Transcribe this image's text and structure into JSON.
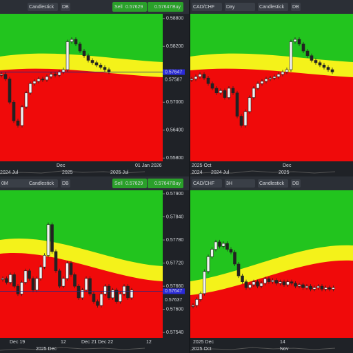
{
  "panels": [
    {
      "toolbar": {
        "chart_type": "Candlestick",
        "db": "DB",
        "sell_label": "Sell",
        "sell_price": "0.57629",
        "buy_price": "0.57647",
        "buy_label": "Buy"
      },
      "ylim": [
        0.5573,
        0.589
      ],
      "price_ticks": [
        {
          "value": 0.588,
          "label": "0.58800"
        },
        {
          "value": 0.582,
          "label": "0.58200"
        },
        {
          "value": 0.57,
          "label": "0.57000"
        },
        {
          "value": 0.564,
          "label": "0.56400"
        },
        {
          "value": 0.558,
          "label": "0.55800"
        }
      ],
      "price_tags": [
        {
          "value": 0.57647,
          "label": "0.57647"
        },
        {
          "value": 0.57587,
          "label": "0.57587"
        }
      ],
      "date_labels": [
        "Dec",
        "01 Jan 2026"
      ],
      "nav_labels": [
        "2024 Jul",
        "2025",
        "2025 Jul"
      ],
      "closes": [
        0.576,
        0.575,
        0.57,
        0.566,
        0.565,
        0.569,
        0.572,
        0.574,
        0.5745,
        0.575,
        0.5748,
        0.5755,
        0.576,
        0.5758,
        0.5765,
        0.577,
        0.583,
        0.5835,
        0.5825,
        0.581,
        0.58,
        0.579,
        0.5785,
        0.578,
        0.5775,
        0.577,
        0.5765
      ]
    },
    {
      "toolbar": {
        "symbol": "CAD/CHF",
        "timeframe": "Day",
        "chart_type": "Candlestick",
        "db": "DB"
      },
      "ylim": [
        0.5573,
        0.589
      ],
      "date_labels": [
        "2025 Oct",
        "Dec"
      ],
      "nav_labels": [
        "2024",
        "2024 Jul",
        "2025"
      ],
      "closes": [
        0.575,
        0.5755,
        0.576,
        0.5752,
        0.574,
        0.573,
        0.572,
        0.5725,
        0.571,
        0.573,
        0.572,
        0.567,
        0.565,
        0.568,
        0.571,
        0.573,
        0.574,
        0.5745,
        0.575,
        0.5752,
        0.5755,
        0.576,
        0.5765,
        0.577,
        0.583,
        0.5835,
        0.5825,
        0.581,
        0.58,
        0.579,
        0.5785,
        0.578,
        0.5775,
        0.577,
        0.5765
      ]
    },
    {
      "toolbar": {
        "timeframe": "0M",
        "chart_type": "Candlestick",
        "db": "DB",
        "sell_label": "Sell",
        "sell_price": "0.57629",
        "buy_price": "0.57647",
        "buy_label": "Buy"
      },
      "ylim": [
        0.57526,
        0.57909
      ],
      "price_ticks": [
        {
          "value": 0.579,
          "label": "0.57900"
        },
        {
          "value": 0.5784,
          "label": "0.57840"
        },
        {
          "value": 0.5778,
          "label": "0.57780"
        },
        {
          "value": 0.5772,
          "label": "0.57720"
        },
        {
          "value": 0.5766,
          "label": "0.57660"
        },
        {
          "value": 0.576,
          "label": "0.57600"
        },
        {
          "value": 0.5754,
          "label": "0.57540"
        }
      ],
      "price_tags": [
        {
          "value": 0.57647,
          "label": "0.57647"
        },
        {
          "value": 0.57637,
          "label": "0.57637"
        }
      ],
      "date_labels": [
        "Dec 19",
        "12",
        "Dec 21",
        "Dec 22",
        "12"
      ],
      "nav_labels": [
        "2025 Dec"
      ],
      "closes": [
        0.5768,
        0.5767,
        0.5769,
        0.5766,
        0.5764,
        0.5767,
        0.577,
        0.5768,
        0.5765,
        0.5768,
        0.5771,
        0.5774,
        0.5782,
        0.5775,
        0.577,
        0.5766,
        0.5768,
        0.5772,
        0.5769,
        0.5766,
        0.5763,
        0.5765,
        0.5768,
        0.5764,
        0.5762,
        0.5761,
        0.5764,
        0.5766,
        0.5763,
        0.5765,
        0.5762,
        0.5764,
        0.5766,
        0.5763,
        0.5765
      ]
    },
    {
      "toolbar": {
        "symbol": "CAD/CHF",
        "timeframe": "3H",
        "chart_type": "Candlestick",
        "db": "DB"
      },
      "ylim": [
        0.573,
        0.583
      ],
      "date_labels": [
        "2025 Dec",
        "14"
      ],
      "nav_labels": [
        "2025 Oct",
        "Nov"
      ],
      "closes": [
        0.5752,
        0.5756,
        0.576,
        0.5775,
        0.5785,
        0.579,
        0.5795,
        0.5792,
        0.5794,
        0.579,
        0.5788,
        0.578,
        0.5772,
        0.5768,
        0.5764,
        0.5766,
        0.5768,
        0.5765,
        0.5767,
        0.577,
        0.5768,
        0.5769,
        0.5767,
        0.5768,
        0.5766,
        0.5768,
        0.5767,
        0.5765,
        0.5766,
        0.5764,
        0.5765,
        0.5763,
        0.5764,
        0.5765,
        0.5763,
        0.5764,
        0.5763,
        0.5764
      ]
    }
  ]
}
